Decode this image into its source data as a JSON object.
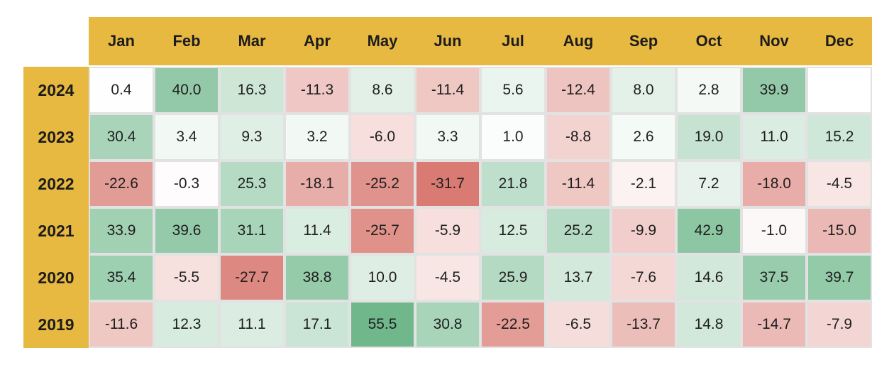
{
  "chart_data": {
    "type": "heatmap",
    "title": "",
    "columns": [
      "Jan",
      "Feb",
      "Mar",
      "Apr",
      "May",
      "Jun",
      "Jul",
      "Aug",
      "Sep",
      "Oct",
      "Nov",
      "Dec"
    ],
    "rows": [
      "2024",
      "2023",
      "2022",
      "2021",
      "2020",
      "2019"
    ],
    "values": [
      [
        "0.4",
        "40.0",
        "16.3",
        "-11.3",
        "8.6",
        "-11.4",
        "5.6",
        "-12.4",
        "8.0",
        "2.8",
        "39.9",
        ""
      ],
      [
        "30.4",
        "3.4",
        "9.3",
        "3.2",
        "-6.0",
        "3.3",
        "1.0",
        "-8.8",
        "2.6",
        "19.0",
        "11.0",
        "15.2"
      ],
      [
        "-22.6",
        "-0.3",
        "25.3",
        "-18.1",
        "-25.2",
        "-31.7",
        "21.8",
        "-11.4",
        "-2.1",
        "7.2",
        "-18.0",
        "-4.5"
      ],
      [
        "33.9",
        "39.6",
        "31.1",
        "11.4",
        "-25.7",
        "-5.9",
        "12.5",
        "25.2",
        "-9.9",
        "42.9",
        "-1.0",
        "-15.0"
      ],
      [
        "35.4",
        "-5.5",
        "-27.7",
        "38.8",
        "10.0",
        "-4.5",
        "25.9",
        "13.7",
        "-7.6",
        "14.6",
        "37.5",
        "39.7"
      ],
      [
        "-11.6",
        "12.3",
        "11.1",
        "17.1",
        "55.5",
        "30.8",
        "-22.5",
        "-6.5",
        "-13.7",
        "14.8",
        "-14.7",
        "-7.9"
      ]
    ],
    "color_scale": {
      "negative": "#d97b73",
      "neutral": "#ffffff",
      "positive": "#70b88c",
      "empty": "#ffffff",
      "negative_limit": -31.7,
      "positive_limit": 55.5
    }
  },
  "colors": {
    "header_band": "#e8b941",
    "grid_line": "#e2e2e2",
    "text": "#1e1e1e"
  }
}
